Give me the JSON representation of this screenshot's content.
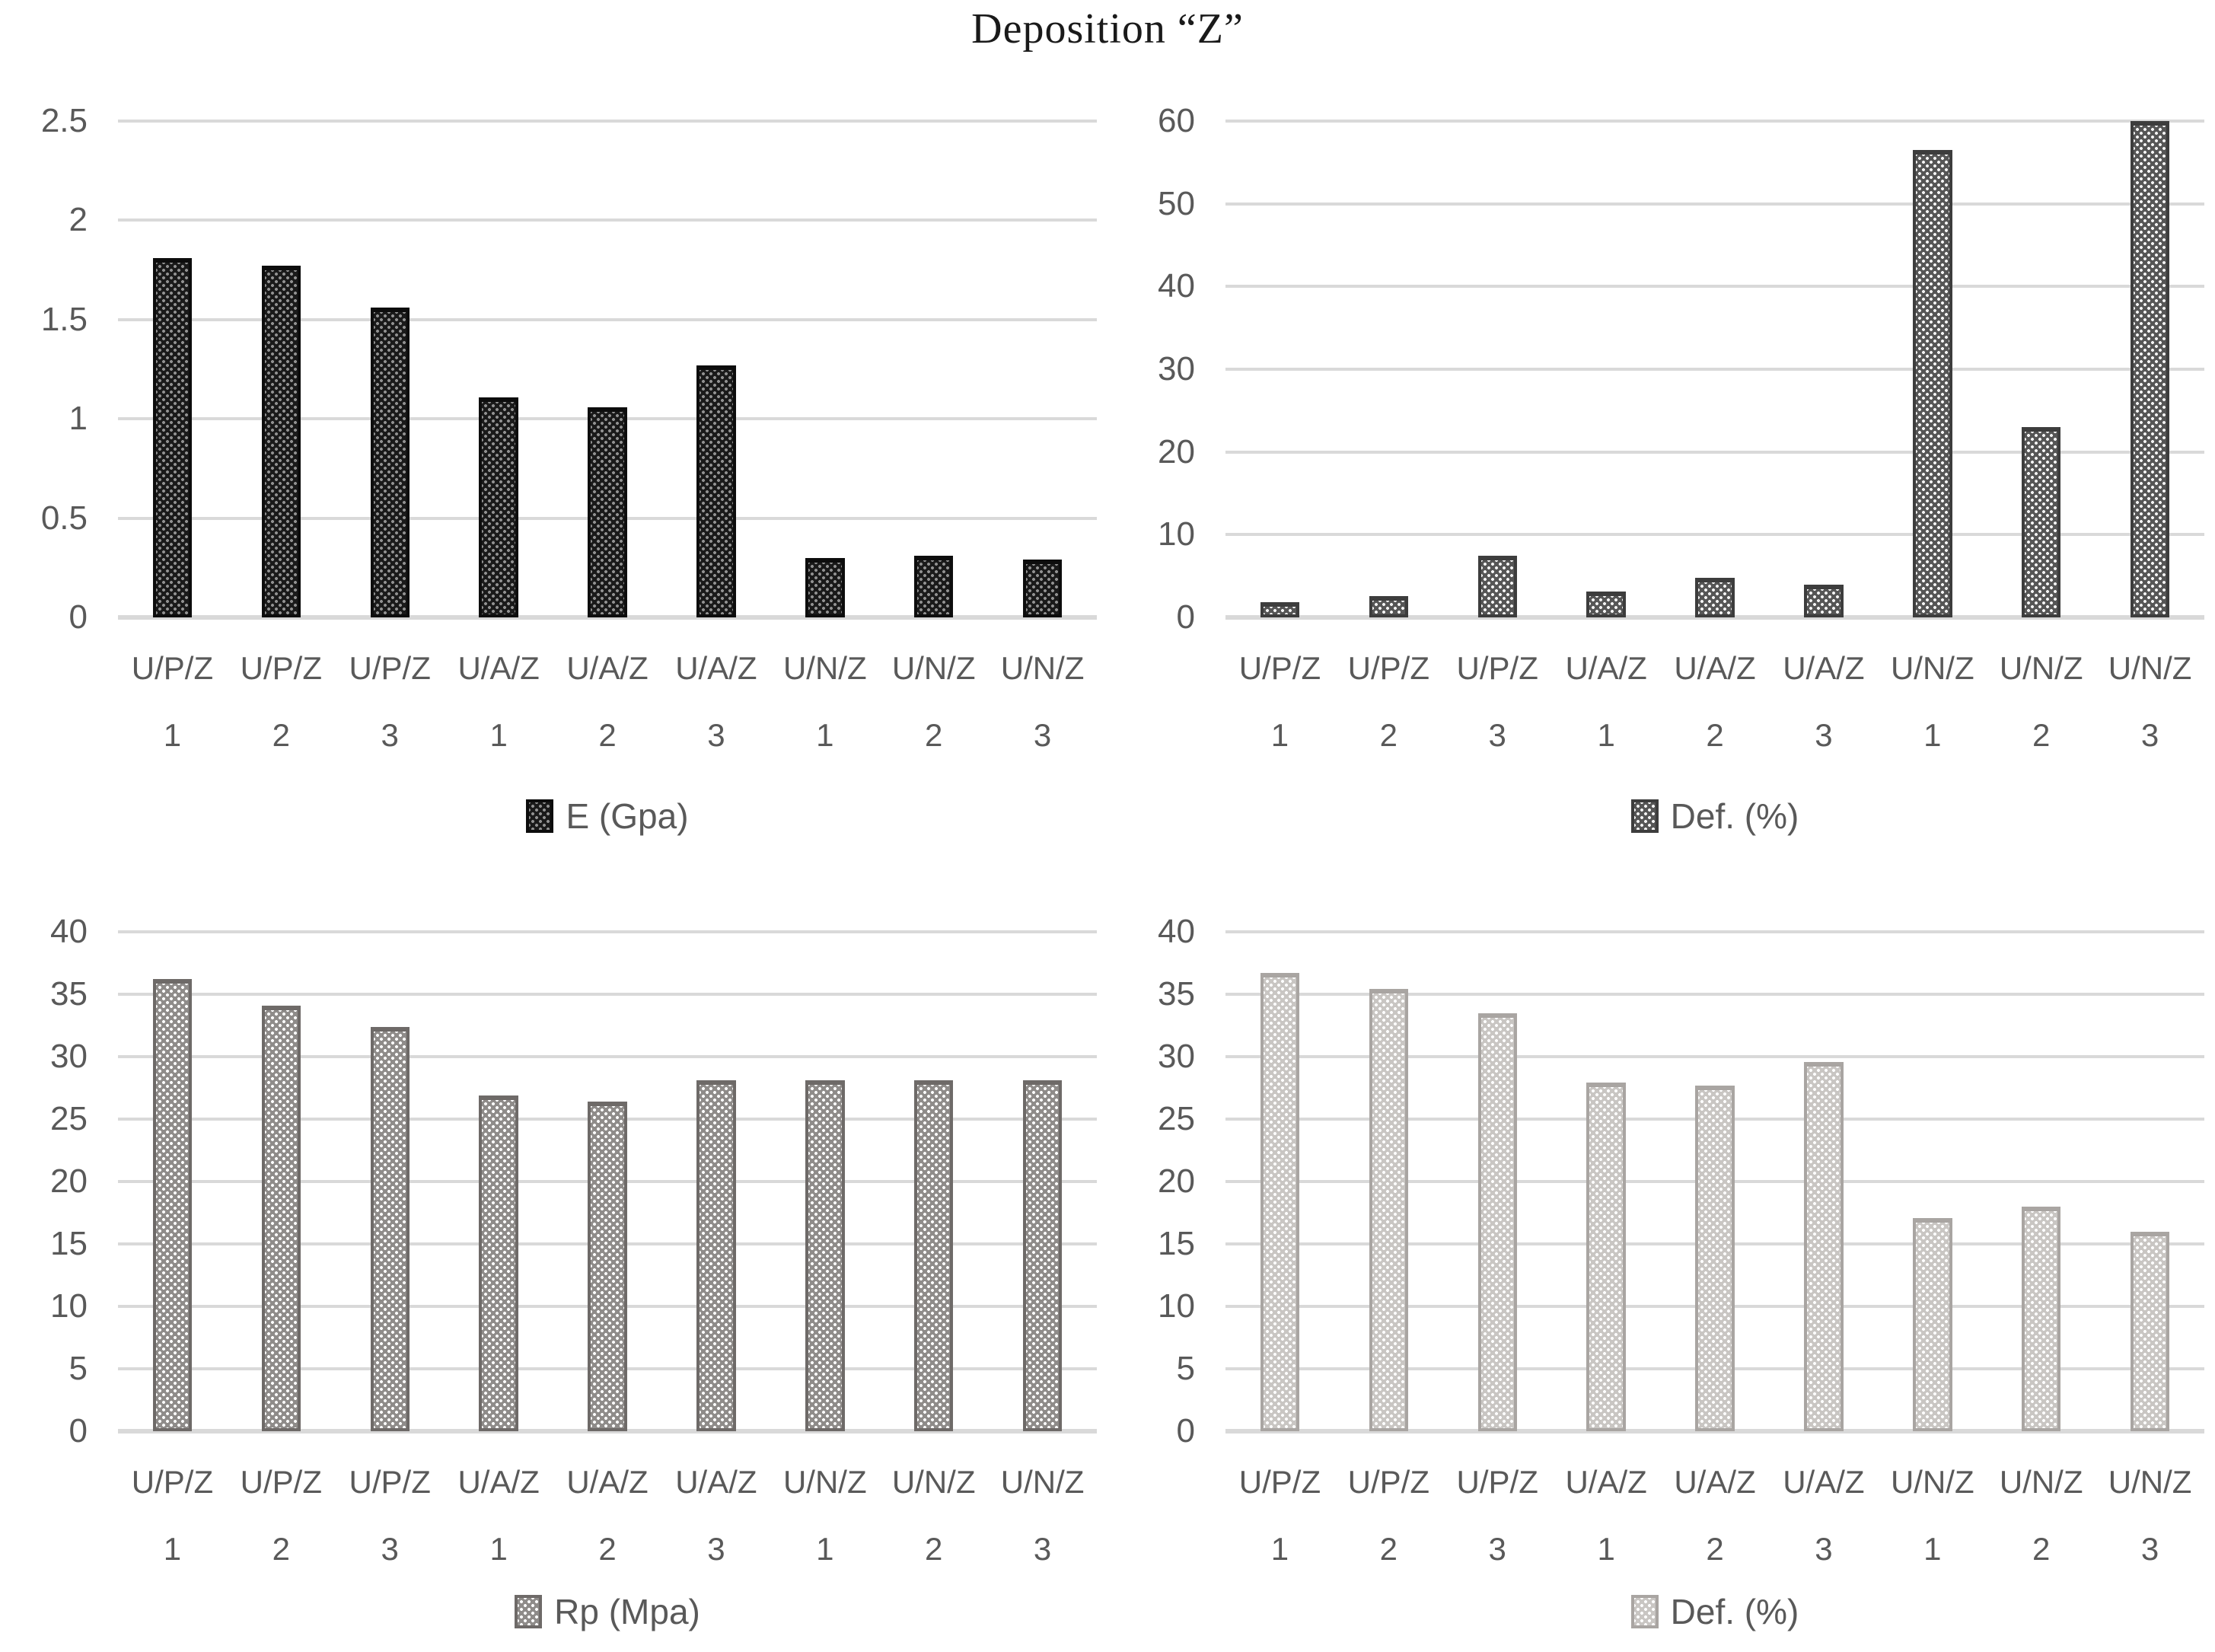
{
  "title": "Deposition “Z”",
  "styles": {
    "axis_text_color": "#595959",
    "gridline_color": "#d9d9d9",
    "title_color": "#1a1a1a",
    "background_color": "#ffffff"
  },
  "chart_data": [
    {
      "type": "bar",
      "position": "top-left",
      "legend": "E (Gpa)",
      "ylabel": "",
      "xlabel": "",
      "ylim": [
        0,
        2.5
      ],
      "yticks": [
        "0",
        "0.5",
        "1",
        "1.5",
        "2",
        "2.5"
      ],
      "grid": true,
      "legend_position": "bottom-center",
      "categories_line1": [
        "U/P/Z",
        "U/P/Z",
        "U/P/Z",
        "U/A/Z",
        "U/A/Z",
        "U/A/Z",
        "U/N/Z",
        "U/N/Z",
        "U/N/Z"
      ],
      "categories_line2": [
        "1",
        "2",
        "3",
        "1",
        "2",
        "3",
        "1",
        "2",
        "3"
      ],
      "values": [
        1.81,
        1.77,
        1.56,
        1.11,
        1.06,
        1.27,
        0.3,
        0.31,
        0.29
      ],
      "colors": {
        "base": "#1a1a1a",
        "dot": "#909090",
        "border": "#0d0d0d"
      }
    },
    {
      "type": "bar",
      "position": "top-right",
      "legend": "Def. (%)",
      "ylabel": "",
      "xlabel": "",
      "ylim": [
        0,
        60
      ],
      "yticks": [
        "0",
        "10",
        "20",
        "30",
        "40",
        "50",
        "60"
      ],
      "grid": true,
      "legend_position": "bottom-center",
      "categories_line1": [
        "U/P/Z",
        "U/P/Z",
        "U/P/Z",
        "U/A/Z",
        "U/A/Z",
        "U/A/Z",
        "U/N/Z",
        "U/N/Z",
        "U/N/Z"
      ],
      "categories_line2": [
        "1",
        "2",
        "3",
        "1",
        "2",
        "3",
        "1",
        "2",
        "3"
      ],
      "values": [
        1.8,
        2.6,
        7.5,
        3.1,
        4.8,
        4.0,
        56.5,
        23.0,
        60.0
      ],
      "colors": {
        "base": "#565656",
        "dot": "#f2f2f2",
        "border": "#3d3d3d"
      }
    },
    {
      "type": "bar",
      "position": "bottom-left",
      "legend": "Rp (Mpa)",
      "ylabel": "",
      "xlabel": "",
      "ylim": [
        0,
        40
      ],
      "yticks": [
        "0",
        "5",
        "10",
        "15",
        "20",
        "25",
        "30",
        "35",
        "40"
      ],
      "grid": true,
      "legend_position": "bottom-center",
      "categories_line1": [
        "U/P/Z",
        "U/P/Z",
        "U/P/Z",
        "U/A/Z",
        "U/A/Z",
        "U/A/Z",
        "U/N/Z",
        "U/N/Z",
        "U/N/Z"
      ],
      "categories_line2": [
        "1",
        "2",
        "3",
        "1",
        "2",
        "3",
        "1",
        "2",
        "3"
      ],
      "values": [
        36.2,
        34.1,
        32.4,
        26.9,
        26.4,
        28.1,
        28.1,
        28.1,
        28.1
      ],
      "colors": {
        "base": "#8f8c8a",
        "dot": "#ffffff",
        "border": "#6e6a68"
      }
    },
    {
      "type": "bar",
      "position": "bottom-right",
      "legend": "Def. (%)",
      "ylabel": "",
      "xlabel": "",
      "ylim": [
        0,
        40
      ],
      "yticks": [
        "0",
        "5",
        "10",
        "15",
        "20",
        "25",
        "30",
        "35",
        "40"
      ],
      "grid": true,
      "legend_position": "bottom-center",
      "categories_line1": [
        "U/P/Z",
        "U/P/Z",
        "U/P/Z",
        "U/A/Z",
        "U/A/Z",
        "U/A/Z",
        "U/N/Z",
        "U/N/Z",
        "U/N/Z"
      ],
      "categories_line2": [
        "1",
        "2",
        "3",
        "1",
        "2",
        "3",
        "1",
        "2",
        "3"
      ],
      "values": [
        36.7,
        35.4,
        33.5,
        27.9,
        27.7,
        29.6,
        17.1,
        18.0,
        16.0
      ],
      "colors": {
        "base": "#c9c6c3",
        "dot": "#ffffff",
        "border": "#a9a5a2"
      }
    }
  ]
}
